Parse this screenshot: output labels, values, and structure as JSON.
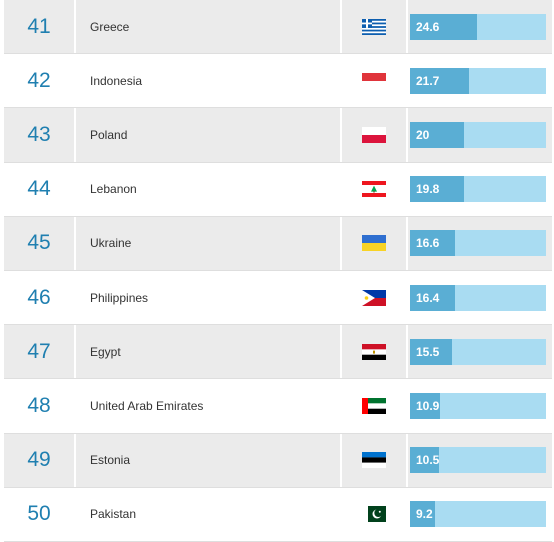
{
  "rows": [
    {
      "rank": "41",
      "country": "Greece",
      "value": "24.6",
      "score": 24.6,
      "flag_icon": "greece-flag-icon"
    },
    {
      "rank": "42",
      "country": "Indonesia",
      "value": "21.7",
      "score": 21.7,
      "flag_icon": "indonesia-flag-icon"
    },
    {
      "rank": "43",
      "country": "Poland",
      "value": "20",
      "score": 20,
      "flag_icon": "poland-flag-icon"
    },
    {
      "rank": "44",
      "country": "Lebanon",
      "value": "19.8",
      "score": 19.8,
      "flag_icon": "lebanon-flag-icon"
    },
    {
      "rank": "45",
      "country": "Ukraine",
      "value": "16.6",
      "score": 16.6,
      "flag_icon": "ukraine-flag-icon"
    },
    {
      "rank": "46",
      "country": "Philippines",
      "value": "16.4",
      "score": 16.4,
      "flag_icon": "philippines-flag-icon"
    },
    {
      "rank": "47",
      "country": "Egypt",
      "value": "15.5",
      "score": 15.5,
      "flag_icon": "egypt-flag-icon"
    },
    {
      "rank": "48",
      "country": "United Arab Emirates",
      "value": "10.9",
      "score": 10.9,
      "flag_icon": "uae-flag-icon"
    },
    {
      "rank": "49",
      "country": "Estonia",
      "value": "10.5",
      "score": 10.5,
      "flag_icon": "estonia-flag-icon"
    },
    {
      "rank": "50",
      "country": "Pakistan",
      "value": "9.2",
      "score": 9.2,
      "flag_icon": "pakistan-flag-icon"
    }
  ],
  "colors": {
    "rank_text": "#1f7fb0",
    "bar_fill": "#5aaed4",
    "bar_track": "#a9dcf2",
    "row_stripe": "#ebebeb"
  }
}
